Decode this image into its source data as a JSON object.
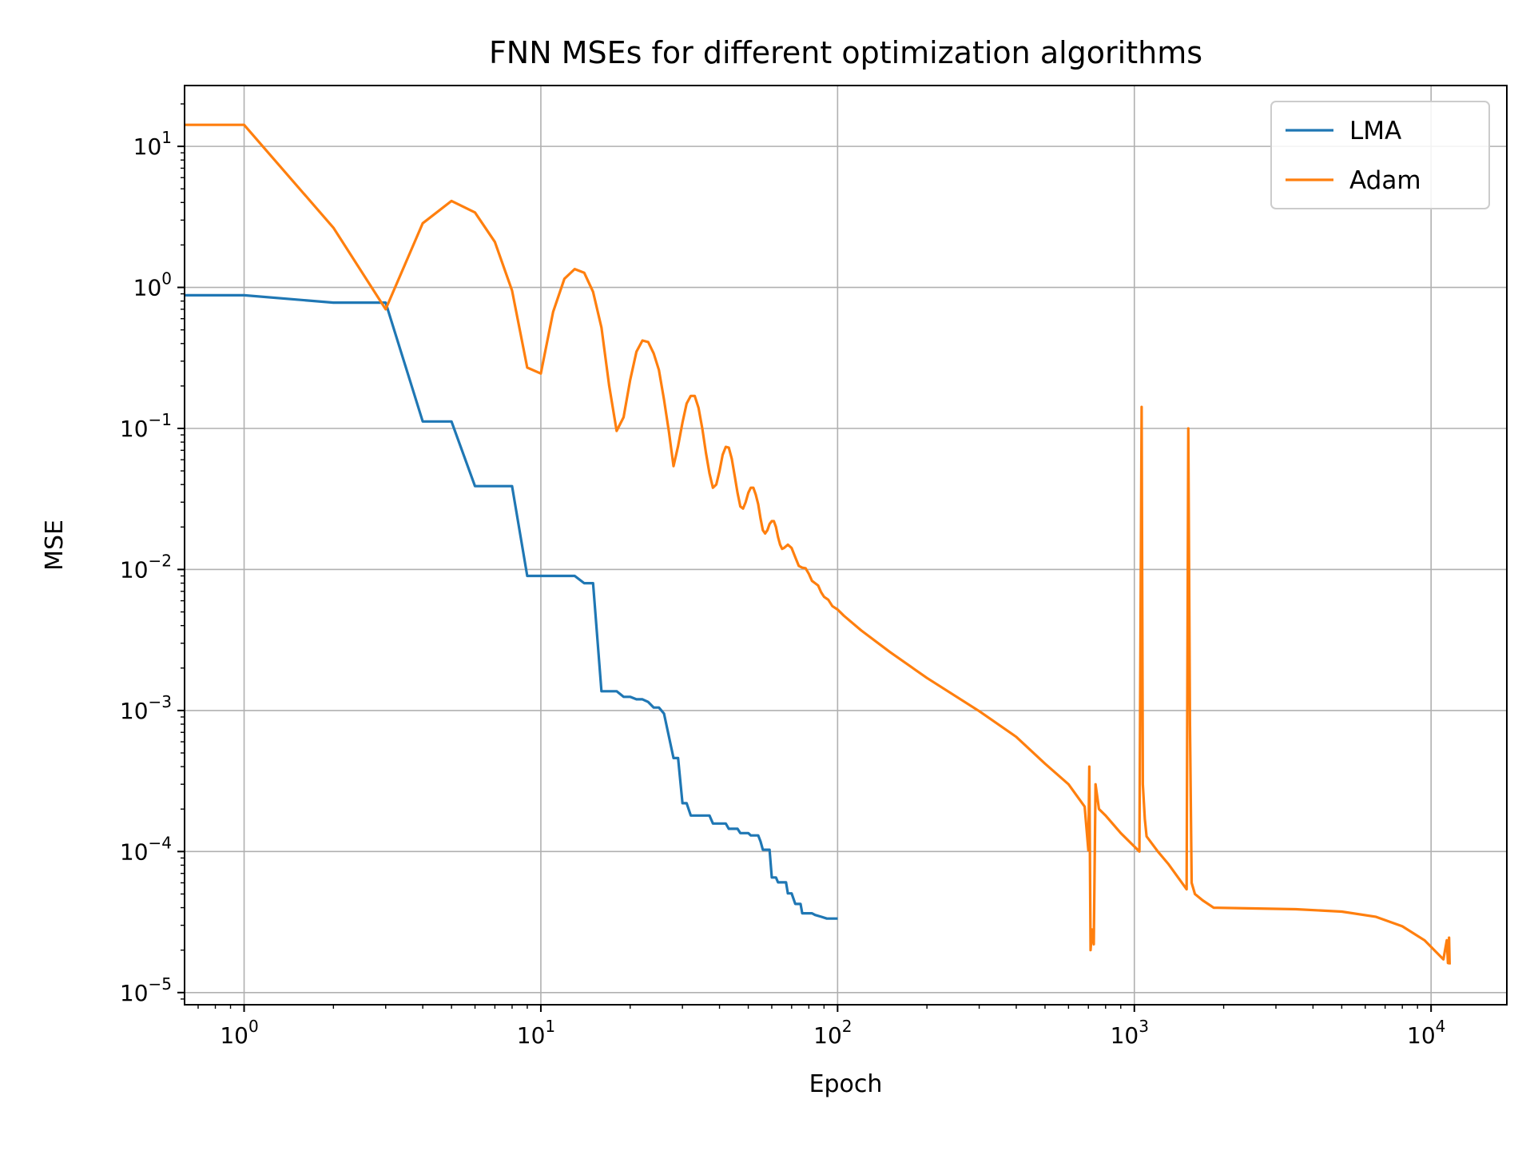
{
  "chart_data": {
    "type": "line",
    "title": "FNN MSEs for different optimization algorithms",
    "xlabel": "Epoch",
    "ylabel": "MSE",
    "x_scale": "log",
    "y_scale": "log",
    "xlim": [
      0.63,
      18000
    ],
    "ylim": [
      8.2e-06,
      27
    ],
    "grid": true,
    "legend_position": "top-right",
    "x_tick_labels": [
      {
        "base": "10",
        "exp": "0",
        "value": 1
      },
      {
        "base": "10",
        "exp": "1",
        "value": 10
      },
      {
        "base": "10",
        "exp": "2",
        "value": 100
      },
      {
        "base": "10",
        "exp": "3",
        "value": 1000
      },
      {
        "base": "10",
        "exp": "4",
        "value": 10000
      }
    ],
    "y_tick_labels": [
      {
        "base": "10",
        "exp": "1",
        "value": 10
      },
      {
        "base": "10",
        "exp": "0",
        "value": 1
      },
      {
        "base": "10",
        "exp": "−1",
        "value": 0.1
      },
      {
        "base": "10",
        "exp": "−2",
        "value": 0.01
      },
      {
        "base": "10",
        "exp": "−3",
        "value": 0.001
      },
      {
        "base": "10",
        "exp": "−4",
        "value": 0.0001
      },
      {
        "base": "10",
        "exp": "−5",
        "value": 1e-05
      }
    ],
    "series": [
      {
        "name": "LMA",
        "color": "#1f77b4",
        "points": [
          [
            0.6,
            0.88
          ],
          [
            1,
            0.88
          ],
          [
            2,
            0.78
          ],
          [
            3,
            0.78
          ],
          [
            4,
            0.112
          ],
          [
            5,
            0.112
          ],
          [
            6,
            0.039
          ],
          [
            8,
            0.039
          ],
          [
            9,
            0.009
          ],
          [
            13,
            0.009
          ],
          [
            14,
            0.008
          ],
          [
            15,
            0.008
          ],
          [
            16,
            0.00137
          ],
          [
            18,
            0.00137
          ],
          [
            19,
            0.00125
          ],
          [
            20,
            0.00125
          ],
          [
            21,
            0.0012
          ],
          [
            22,
            0.0012
          ],
          [
            23,
            0.00115
          ],
          [
            24,
            0.00105
          ],
          [
            25,
            0.00105
          ],
          [
            26,
            0.00095
          ],
          [
            28,
            0.00046
          ],
          [
            29,
            0.00046
          ],
          [
            30,
            0.00022
          ],
          [
            31,
            0.00022
          ],
          [
            32,
            0.00018
          ],
          [
            37,
            0.00018
          ],
          [
            38,
            0.000158
          ],
          [
            42,
            0.000158
          ],
          [
            43,
            0.000145
          ],
          [
            46,
            0.000145
          ],
          [
            47,
            0.000135
          ],
          [
            50,
            0.000135
          ],
          [
            51,
            0.00013
          ],
          [
            54,
            0.00013
          ],
          [
            55,
            0.000118
          ],
          [
            56,
            0.000103
          ],
          [
            59,
            0.000103
          ],
          [
            60,
            6.55e-05
          ],
          [
            62,
            6.55e-05
          ],
          [
            63,
            6.05e-05
          ],
          [
            67,
            6.05e-05
          ],
          [
            68,
            5.05e-05
          ],
          [
            70,
            5.05e-05
          ],
          [
            72,
            4.25e-05
          ],
          [
            75,
            4.25e-05
          ],
          [
            76,
            3.65e-05
          ],
          [
            82,
            3.65e-05
          ],
          [
            84,
            3.55e-05
          ],
          [
            88,
            3.45e-05
          ],
          [
            92,
            3.35e-05
          ],
          [
            100,
            3.35e-05
          ]
        ]
      },
      {
        "name": "Adam",
        "color": "#ff7f0e",
        "points": [
          [
            0.6,
            14.2
          ],
          [
            1,
            14.2
          ],
          [
            2,
            2.65
          ],
          [
            3,
            0.7
          ],
          [
            4,
            2.85
          ],
          [
            5,
            4.1
          ],
          [
            6,
            3.4
          ],
          [
            7,
            2.1
          ],
          [
            8,
            0.95
          ],
          [
            9,
            0.27
          ],
          [
            10,
            0.245
          ],
          [
            11,
            0.67
          ],
          [
            12,
            1.15
          ],
          [
            13,
            1.35
          ],
          [
            14,
            1.27
          ],
          [
            15,
            0.93
          ],
          [
            16,
            0.52
          ],
          [
            17,
            0.2
          ],
          [
            18,
            0.096
          ],
          [
            19,
            0.12
          ],
          [
            20,
            0.22
          ],
          [
            21,
            0.35
          ],
          [
            22,
            0.42
          ],
          [
            23,
            0.41
          ],
          [
            24,
            0.34
          ],
          [
            25,
            0.26
          ],
          [
            26,
            0.16
          ],
          [
            27,
            0.095
          ],
          [
            28,
            0.054
          ],
          [
            29,
            0.075
          ],
          [
            30,
            0.11
          ],
          [
            31,
            0.15
          ],
          [
            32,
            0.17
          ],
          [
            33,
            0.17
          ],
          [
            34,
            0.14
          ],
          [
            35,
            0.1
          ],
          [
            36,
            0.067
          ],
          [
            37,
            0.048
          ],
          [
            38,
            0.038
          ],
          [
            39,
            0.04
          ],
          [
            40,
            0.05
          ],
          [
            41,
            0.065
          ],
          [
            42,
            0.074
          ],
          [
            43,
            0.073
          ],
          [
            44,
            0.061
          ],
          [
            45,
            0.046
          ],
          [
            46,
            0.035
          ],
          [
            47,
            0.028
          ],
          [
            48,
            0.027
          ],
          [
            49,
            0.03
          ],
          [
            50,
            0.035
          ],
          [
            51,
            0.038
          ],
          [
            52,
            0.038
          ],
          [
            53,
            0.034
          ],
          [
            54,
            0.029
          ],
          [
            55,
            0.023
          ],
          [
            56,
            0.019
          ],
          [
            57,
            0.018
          ],
          [
            58,
            0.019
          ],
          [
            59,
            0.021
          ],
          [
            60,
            0.022
          ],
          [
            61,
            0.022
          ],
          [
            62,
            0.02
          ],
          [
            63,
            0.017
          ],
          [
            64,
            0.015
          ],
          [
            65,
            0.014
          ],
          [
            66,
            0.0142
          ],
          [
            68,
            0.015
          ],
          [
            70,
            0.0142
          ],
          [
            72,
            0.0122
          ],
          [
            74,
            0.0106
          ],
          [
            76,
            0.0103
          ],
          [
            78,
            0.0102
          ],
          [
            80,
            0.0093
          ],
          [
            82,
            0.0083
          ],
          [
            84,
            0.008
          ],
          [
            86,
            0.0077
          ],
          [
            88,
            0.0069
          ],
          [
            90,
            0.0064
          ],
          [
            93,
            0.0061
          ],
          [
            96,
            0.0055
          ],
          [
            100,
            0.0052
          ],
          [
            105,
            0.0047
          ],
          [
            120,
            0.0037
          ],
          [
            150,
            0.0026
          ],
          [
            200,
            0.0017
          ],
          [
            300,
            0.00099
          ],
          [
            400,
            0.00065
          ],
          [
            500,
            0.00042
          ],
          [
            600,
            0.0003
          ],
          [
            680,
            0.000208
          ],
          [
            700,
            0.000102
          ],
          [
            705,
            0.0004
          ],
          [
            712,
            2e-05
          ],
          [
            720,
            2.8e-05
          ],
          [
            730,
            2.2e-05
          ],
          [
            740,
            0.0003
          ],
          [
            760,
            0.0002
          ],
          [
            800,
            0.00018
          ],
          [
            900,
            0.000135
          ],
          [
            1040,
            0.0001
          ],
          [
            1058,
            0.142
          ],
          [
            1068,
            0.0003
          ],
          [
            1085,
            0.00017
          ],
          [
            1100,
            0.000128
          ],
          [
            1200,
            0.0001
          ],
          [
            1300,
            8.2e-05
          ],
          [
            1500,
            5.4e-05
          ],
          [
            1520,
            0.1
          ],
          [
            1540,
            0.0008
          ],
          [
            1560,
            6e-05
          ],
          [
            1600,
            5e-05
          ],
          [
            1700,
            4.5e-05
          ],
          [
            1850,
            4e-05
          ],
          [
            2500,
            3.95e-05
          ],
          [
            3500,
            3.9e-05
          ],
          [
            5000,
            3.75e-05
          ],
          [
            6500,
            3.45e-05
          ],
          [
            8000,
            2.95e-05
          ],
          [
            9500,
            2.35e-05
          ],
          [
            11000,
            1.72e-05
          ],
          [
            11300,
            2.35e-05
          ],
          [
            11400,
            1.62e-05
          ],
          [
            11500,
            2.45e-05
          ],
          [
            11550,
            1.58e-05
          ]
        ]
      }
    ]
  }
}
